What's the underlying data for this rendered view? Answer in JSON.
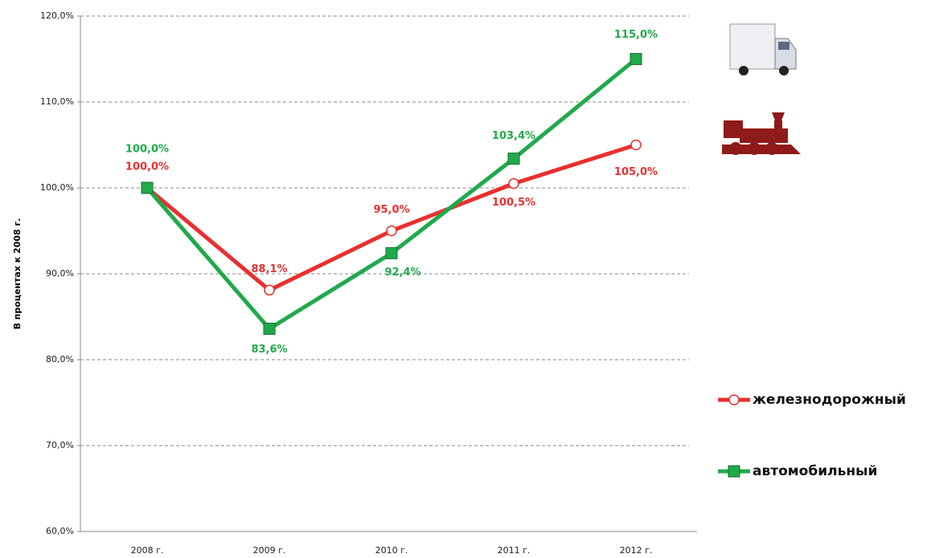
{
  "chart_data": {
    "type": "line",
    "y_label": "В процентах к 2008 г.",
    "categories": [
      "2008 г.",
      "2009 г.",
      "2010 г.",
      "2011 г.",
      "2012 г."
    ],
    "series": [
      {
        "name": "железнодорожный",
        "color": "#e8302f",
        "marker": "circle",
        "values": [
          100,
          88.1,
          95,
          100.5,
          105
        ],
        "value_labels": [
          "100,0%",
          "88,1%",
          "95,0%",
          "100,5%",
          "105,0%"
        ]
      },
      {
        "name": "автомобильный",
        "color": "#1faa4a",
        "marker": "square",
        "values": [
          100,
          83.6,
          92.4,
          103.4,
          115
        ],
        "value_labels": [
          "100,0%",
          "83,6%",
          "92,4%",
          "103,4%",
          "115,0%"
        ]
      }
    ],
    "ylim": [
      60,
      120
    ],
    "yticks": [
      {
        "value": 60,
        "label": "60,0%"
      },
      {
        "value": 70,
        "label": "70,0%"
      },
      {
        "value": 80,
        "label": "80,0%"
      },
      {
        "value": 90,
        "label": "90,0%"
      },
      {
        "value": 100,
        "label": "100,0%"
      },
      {
        "value": 110,
        "label": "110,0%"
      },
      {
        "value": 120,
        "label": "120,0%"
      }
    ],
    "grid": true
  }
}
